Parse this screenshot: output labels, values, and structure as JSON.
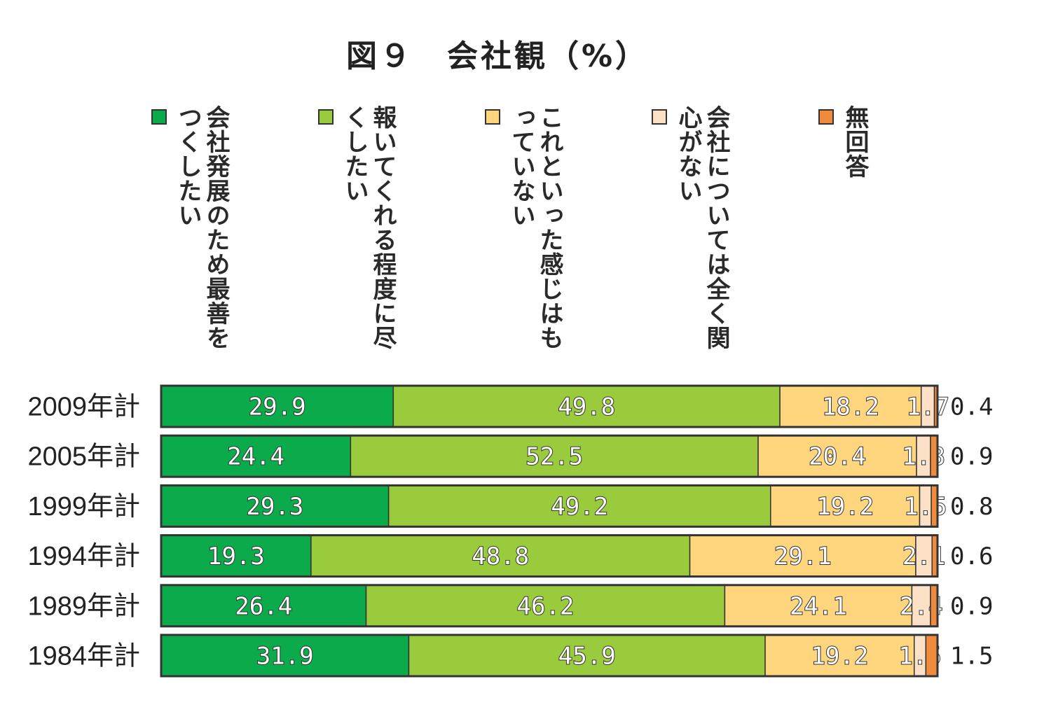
{
  "chart_data": {
    "type": "bar",
    "orientation": "horizontal-stacked-100",
    "title": "図９　会社観（%）",
    "categories": [
      "2009年計",
      "2005年計",
      "1999年計",
      "1994年計",
      "1989年計",
      "1984年計"
    ],
    "series": [
      {
        "name": "会社発展のため最善をつくしたい",
        "color": "#0bab4b",
        "values": [
          29.9,
          24.4,
          29.3,
          19.3,
          26.4,
          31.9
        ]
      },
      {
        "name": "報いてくれる程度に尽くしたい",
        "color": "#9acb3c",
        "values": [
          49.8,
          52.5,
          49.2,
          48.8,
          46.2,
          45.9
        ]
      },
      {
        "name": "これといった感じはもっていない",
        "color": "#ffd57e",
        "values": [
          18.2,
          20.4,
          19.2,
          29.1,
          24.1,
          19.2
        ]
      },
      {
        "name": "会社については全く関心がない",
        "color": "#fde1c6",
        "values": [
          1.7,
          1.8,
          1.5,
          2.1,
          2.4,
          1.5
        ]
      },
      {
        "name": "無回答",
        "color": "#f08a3c",
        "values": [
          0.4,
          0.9,
          0.8,
          0.6,
          0.9,
          1.5
        ]
      }
    ],
    "xlim": [
      0,
      100
    ],
    "legend_position": "top",
    "grid": false
  }
}
